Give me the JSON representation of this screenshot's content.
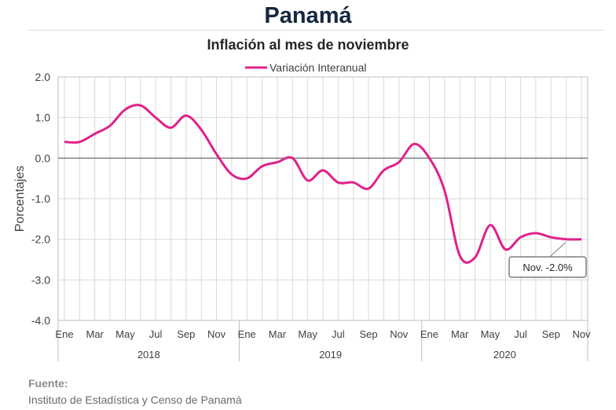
{
  "title": "Panamá",
  "chart_data": {
    "type": "line",
    "title": "Inflación al mes de noviembre",
    "ylabel": "Porcentajes",
    "xlabel": "",
    "ylim": [
      -4.0,
      2.0
    ],
    "yticks": [
      "2.0",
      "1.0",
      "0.0",
      "-1.0",
      "-2.0",
      "-3.0",
      "-4.0"
    ],
    "grid": true,
    "legend_position": "top-center",
    "month_tick_labels": [
      "Ene",
      "Mar",
      "May",
      "Jul",
      "Sep",
      "Nov"
    ],
    "years": [
      "2018",
      "2019",
      "2020"
    ],
    "x": [
      "2018-01",
      "2018-02",
      "2018-03",
      "2018-04",
      "2018-05",
      "2018-06",
      "2018-07",
      "2018-08",
      "2018-09",
      "2018-10",
      "2018-11",
      "2018-12",
      "2019-01",
      "2019-02",
      "2019-03",
      "2019-04",
      "2019-05",
      "2019-06",
      "2019-07",
      "2019-08",
      "2019-09",
      "2019-10",
      "2019-11",
      "2019-12",
      "2020-01",
      "2020-02",
      "2020-03",
      "2020-04",
      "2020-05",
      "2020-06",
      "2020-07",
      "2020-08",
      "2020-09",
      "2020-10",
      "2020-11"
    ],
    "series": [
      {
        "name": "Variación Interanual",
        "color": "#e0218a",
        "values": [
          0.4,
          0.4,
          0.6,
          0.8,
          1.2,
          1.3,
          1.0,
          0.75,
          1.05,
          0.7,
          0.1,
          -0.4,
          -0.5,
          -0.2,
          -0.1,
          0.0,
          -0.55,
          -0.3,
          -0.6,
          -0.6,
          -0.75,
          -0.3,
          -0.1,
          0.35,
          0.0,
          -0.8,
          -2.4,
          -2.45,
          -1.65,
          -2.25,
          -1.95,
          -1.85,
          -1.95,
          -2.0,
          -2.0
        ]
      }
    ],
    "annotation": "Nov. -2.0%",
    "zero_line_color": "#7f7f7f"
  },
  "source": {
    "label": "Fuente:",
    "text": "Instituto de Estadística y Censo de Panamá"
  }
}
